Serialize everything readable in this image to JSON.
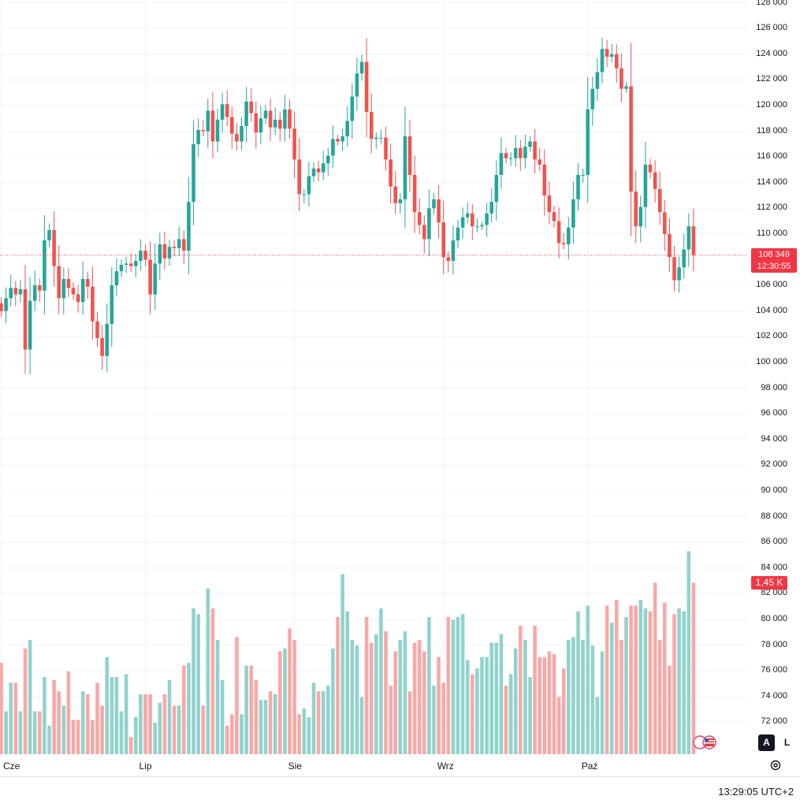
{
  "chart_data": {
    "type": "candlestick",
    "y_ticks": [
      "128 000",
      "126 000",
      "124 000",
      "122 000",
      "120 000",
      "118 000",
      "116 000",
      "114 000",
      "112 000",
      "110 000",
      "106 000",
      "104 000",
      "102 000",
      "100 000",
      "98 000",
      "96 000",
      "94 000",
      "92 000",
      "90 000",
      "88 000",
      "86 000",
      "84 000",
      "82 000",
      "80 000",
      "78 000",
      "76 000",
      "74 000",
      "72 000"
    ],
    "ylim": [
      70000,
      128500
    ],
    "x_labels": [
      {
        "label": "Cze",
        "bar": 0
      },
      {
        "label": "Lip",
        "bar": 30
      },
      {
        "label": "Sie",
        "bar": 61
      },
      {
        "label": "Wrz",
        "bar": 92
      },
      {
        "label": "Paź",
        "bar": 122
      }
    ],
    "last_price": "108 349",
    "countdown": "12:30:55",
    "last_price_value": 108349,
    "volume_label": "1,45 K",
    "volume_max_value": 85300,
    "closes": [
      104000,
      105000,
      105800,
      105300,
      105700,
      101000,
      104800,
      106000,
      105600,
      109500,
      110300,
      107500,
      105000,
      106500,
      105800,
      105300,
      104700,
      106500,
      105900,
      103200,
      101900,
      100500,
      103000,
      106000,
      107100,
      107600,
      107700,
      107500,
      107900,
      108700,
      108000,
      105300,
      107700,
      109200,
      108100,
      109000,
      108900,
      109600,
      108700,
      112500,
      117000,
      118100,
      118000,
      119600,
      117200,
      118900,
      120100,
      119100,
      117800,
      117200,
      118400,
      120300,
      119400,
      117900,
      119000,
      119600,
      118300,
      118900,
      118200,
      119700,
      118200,
      115800,
      113100,
      113100,
      114500,
      115100,
      114800,
      115500,
      116100,
      117400,
      117200,
      117600,
      118800,
      120700,
      122500,
      123400,
      119500,
      117400,
      117500,
      117500,
      115800,
      113700,
      112400,
      112700,
      117600,
      114600,
      111700,
      110700,
      109600,
      112000,
      112700,
      110900,
      108200,
      107900,
      109500,
      110500,
      111300,
      111600,
      110600,
      110600,
      110700,
      111600,
      112500,
      114600,
      116300,
      115900,
      115900,
      116700,
      115900,
      116800,
      117200,
      115800,
      115400,
      113000,
      111700,
      111000,
      109300,
      109200,
      110500,
      112700,
      114600,
      114600,
      119700,
      121300,
      122600,
      124400,
      123800,
      124000,
      122900,
      121300,
      121500,
      113300,
      110600,
      112100,
      115400,
      114800,
      113500,
      111700,
      110000,
      108200,
      106400,
      107400,
      108800,
      110600,
      108349
    ],
    "volumes": [
      0.32,
      0.15,
      0.25,
      0.25,
      0.15,
      0.37,
      0.4,
      0.15,
      0.15,
      0.27,
      0.1,
      0.26,
      0.22,
      0.17,
      0.29,
      0.12,
      0.12,
      0.22,
      0.21,
      0.12,
      0.25,
      0.17,
      0.34,
      0.27,
      0.27,
      0.15,
      0.28,
      0.06,
      0.13,
      0.21,
      0.21,
      0.21,
      0.11,
      0.18,
      0.21,
      0.26,
      0.17,
      0.17,
      0.31,
      0.32,
      0.51,
      0.49,
      0.17,
      0.58,
      0.51,
      0.4,
      0.26,
      0.1,
      0.14,
      0.41,
      0.14,
      0.31,
      0.31,
      0.26,
      0.19,
      0.19,
      0.22,
      0.21,
      0.36,
      0.37,
      0.44,
      0.4,
      0.14,
      0.16,
      0.13,
      0.25,
      0.22,
      0.22,
      0.24,
      0.37,
      0.48,
      0.63,
      0.5,
      0.4,
      0.38,
      0.2,
      0.48,
      0.39,
      0.42,
      0.51,
      0.43,
      0.24,
      0.36,
      0.4,
      0.43,
      0.22,
      0.39,
      0.4,
      0.36,
      0.48,
      0.24,
      0.34,
      0.25,
      0.48,
      0.47,
      0.48,
      0.49,
      0.33,
      0.28,
      0.3,
      0.34,
      0.34,
      0.39,
      0.39,
      0.42,
      0.24,
      0.28,
      0.37,
      0.45,
      0.4,
      0.27,
      0.45,
      0.34,
      0.34,
      0.36,
      0.35,
      0.2,
      0.3,
      0.4,
      0.41,
      0.5,
      0.4,
      0.52,
      0.38,
      0.2,
      0.36,
      0.52,
      0.46,
      0.54,
      0.4,
      0.48,
      0.52,
      0.52,
      0.54,
      0.51,
      0.5,
      0.6,
      0.4,
      0.53,
      0.31,
      0.49,
      0.51,
      0.5,
      0.71,
      0.6
    ]
  },
  "time_axis": {
    "clock": "13:29:05 UTC+2"
  },
  "scale_buttons": {
    "auto": "A",
    "log": "L"
  },
  "colors": {
    "up": "#26a69a",
    "down": "#ef5350",
    "up_vol": "#92d2cc",
    "down_vol": "#f7a9a7",
    "grid": "#f0f3fa",
    "price_line": "#f23645"
  },
  "icons": {
    "settings": "gear-icon",
    "events": "flag-icon"
  }
}
